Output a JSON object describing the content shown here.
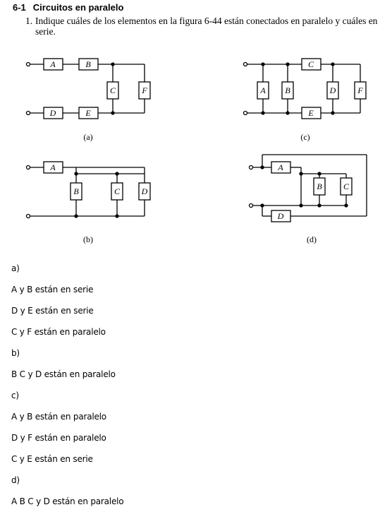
{
  "section": {
    "number": "6-1",
    "title": "Circuitos en paralelo"
  },
  "question": {
    "number": "1.",
    "text": "Indique cuáles de los elementos en la figura 6-44 están conectados en paralelo y cuáles en serie."
  },
  "figure": {
    "captions": {
      "a": "(a)",
      "b": "(b)",
      "c": "(c)",
      "d": "(d)"
    },
    "elements": {
      "A": "A",
      "B": "B",
      "C": "C",
      "D": "D",
      "E": "E",
      "F": "F"
    }
  },
  "answers": [
    "a)",
    "A y B están en serie",
    "D y E están en serie",
    "C y F están en paralelo",
    "b)",
    "B C y D están en paralelo",
    "c)",
    "A y B están en paralelo",
    "D y F están en paralelo",
    "C y E están en serie",
    "d)",
    "A B C y D están en paralelo"
  ]
}
